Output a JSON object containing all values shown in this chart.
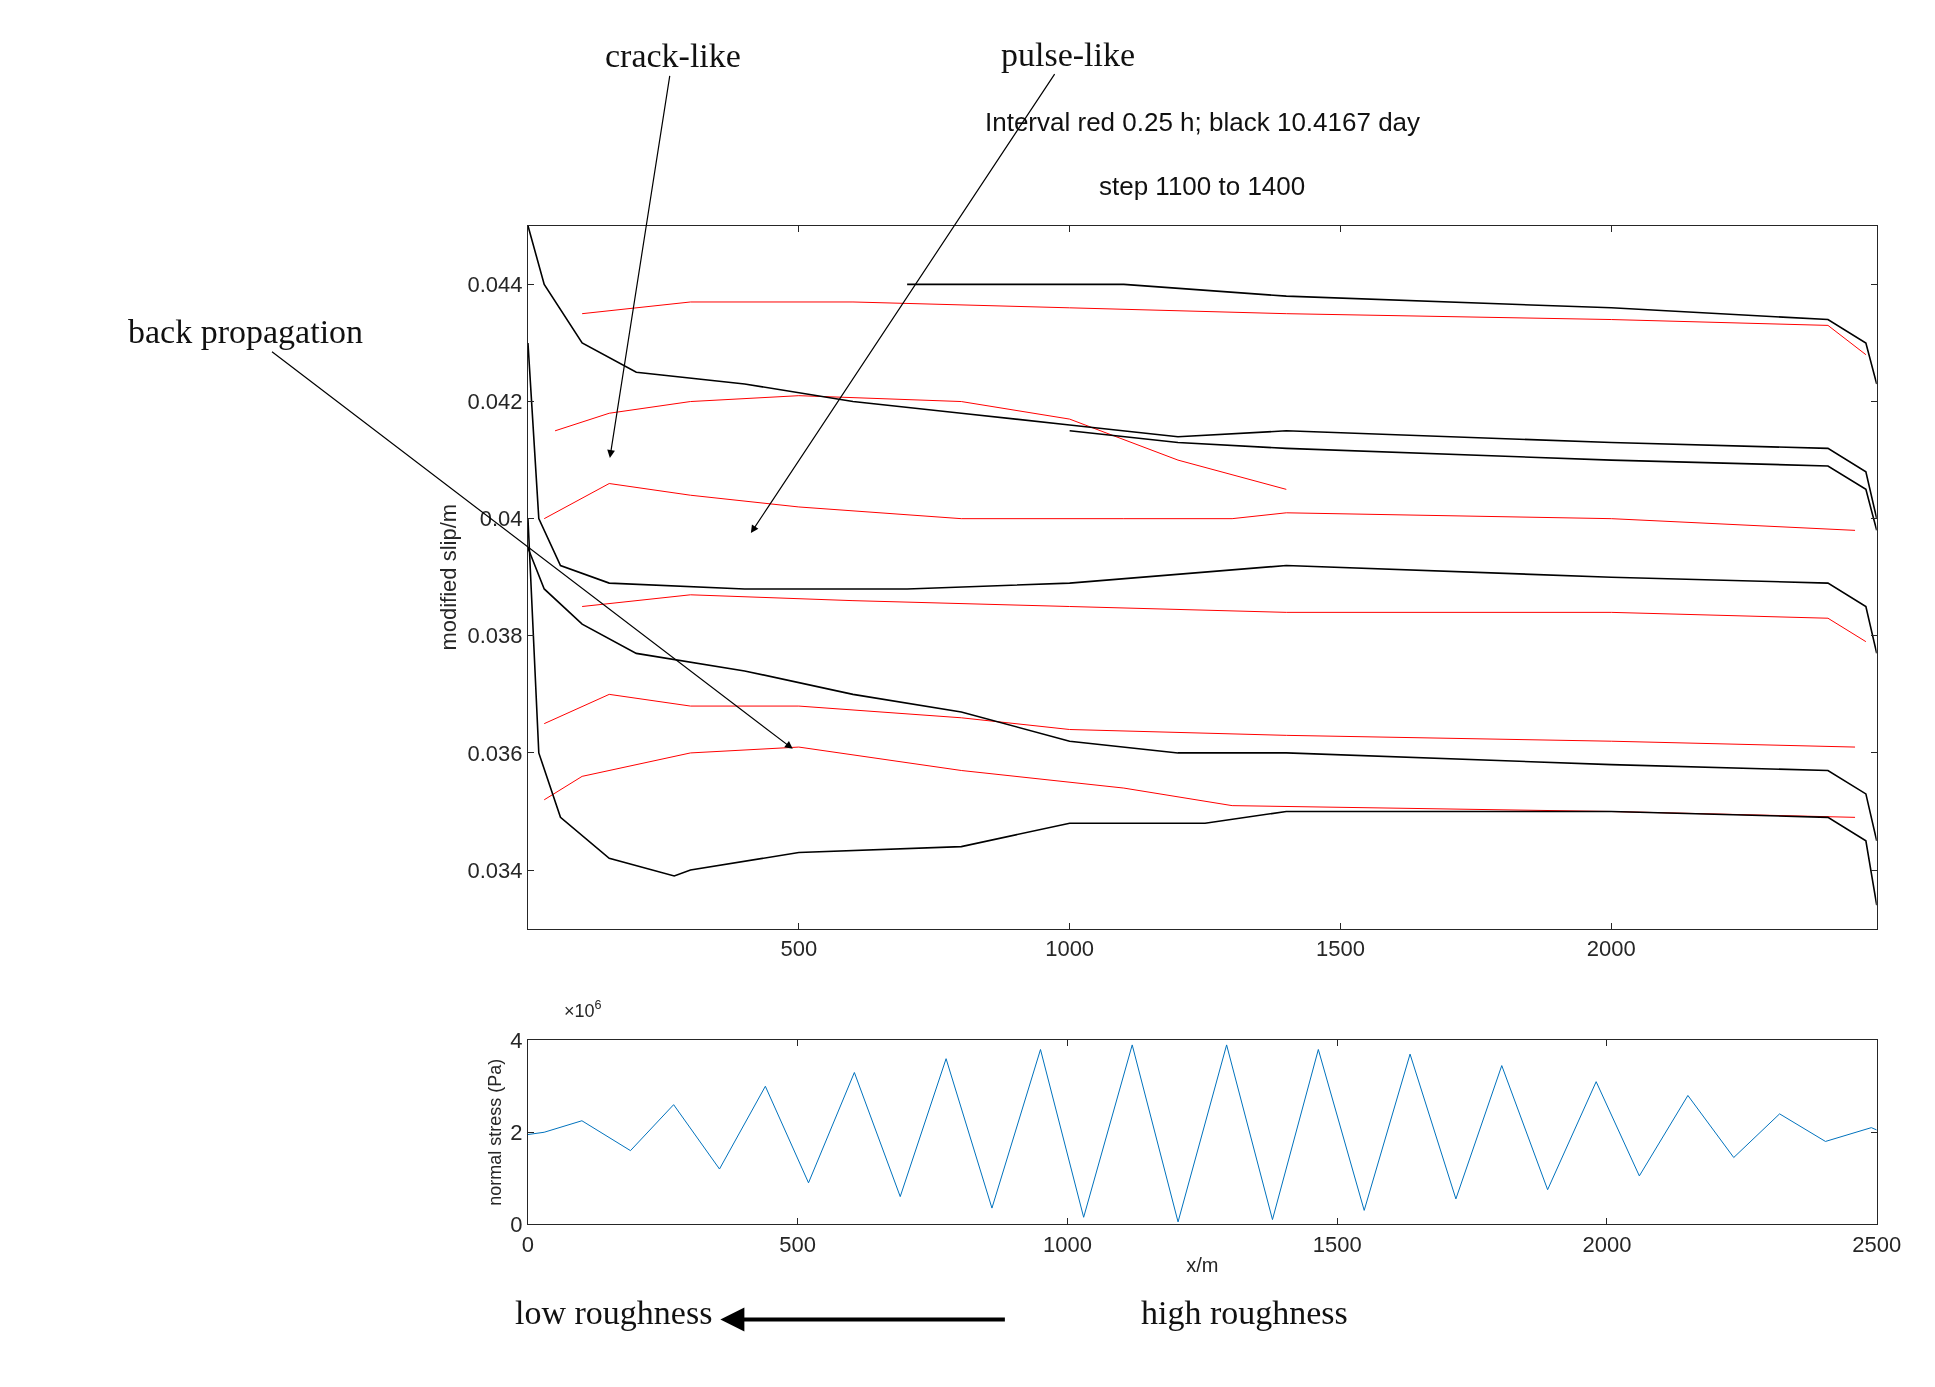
{
  "chart_data": [
    {
      "type": "line",
      "title": "Interval red 0.25 h; black 10.4167 day",
      "subtitle": "step 1100 to 1400",
      "ylabel": "modified slip/m",
      "xlim": [
        0,
        2490
      ],
      "ylim": [
        0.033,
        0.045
      ],
      "xticks": [
        500,
        1000,
        1500,
        2000
      ],
      "yticks": [
        0.034,
        0.036,
        0.038,
        0.04,
        0.042,
        0.044
      ],
      "marker": "none",
      "line_style": "solid",
      "series": [
        {
          "color": "#ff0000",
          "x": [
            100,
            300,
            600,
            1000,
            1400,
            2000,
            2400,
            2470
          ],
          "values": [
            0.0435,
            0.0437,
            0.0437,
            0.0436,
            0.0435,
            0.0434,
            0.0433,
            0.0428
          ]
        },
        {
          "color": "#ff0000",
          "x": [
            50,
            150,
            300,
            500,
            800,
            1000,
            1200,
            1400
          ],
          "values": [
            0.0415,
            0.0418,
            0.042,
            0.0421,
            0.042,
            0.0417,
            0.041,
            0.0405
          ]
        },
        {
          "color": "#ff0000",
          "x": [
            30,
            150,
            300,
            500,
            800,
            1100,
            1300,
            1400,
            2000,
            2450
          ],
          "values": [
            0.04,
            0.0406,
            0.0404,
            0.0402,
            0.04,
            0.04,
            0.04,
            0.0401,
            0.04,
            0.0398
          ]
        },
        {
          "color": "#ff0000",
          "x": [
            100,
            300,
            600,
            1000,
            1400,
            2000,
            2400,
            2470
          ],
          "values": [
            0.0385,
            0.0387,
            0.0386,
            0.0385,
            0.0384,
            0.0384,
            0.0383,
            0.0379
          ]
        },
        {
          "color": "#ff0000",
          "x": [
            30,
            150,
            300,
            500,
            800,
            1000,
            1400,
            2000,
            2450
          ],
          "values": [
            0.0365,
            0.037,
            0.0368,
            0.0368,
            0.0366,
            0.0364,
            0.0363,
            0.0362,
            0.0361
          ]
        },
        {
          "color": "#ff0000",
          "x": [
            30,
            100,
            300,
            500,
            800,
            1100,
            1300,
            2000,
            2450
          ],
          "values": [
            0.0352,
            0.0356,
            0.036,
            0.0361,
            0.0357,
            0.0354,
            0.0351,
            0.035,
            0.0349
          ]
        },
        {
          "color": "#000000",
          "x": [
            700,
            900,
            1100,
            1400,
            2000,
            2400,
            2470,
            2490
          ],
          "values": [
            0.044,
            0.044,
            0.044,
            0.0438,
            0.0436,
            0.0434,
            0.043,
            0.0423
          ]
        },
        {
          "color": "#000000",
          "x": [
            0,
            30,
            100,
            200,
            400,
            600,
            800,
            1000,
            1200,
            1400,
            2000,
            2400,
            2470,
            2490
          ],
          "values": [
            0.045,
            0.044,
            0.043,
            0.0425,
            0.0423,
            0.042,
            0.0418,
            0.0416,
            0.0414,
            0.0415,
            0.0413,
            0.0412,
            0.0408,
            0.04
          ]
        },
        {
          "color": "#000000",
          "x": [
            1000,
            1200,
            1400,
            2000,
            2400,
            2470,
            2490
          ],
          "values": [
            0.0415,
            0.0413,
            0.0412,
            0.041,
            0.0409,
            0.0405,
            0.0398
          ]
        },
        {
          "color": "#000000",
          "x": [
            0,
            20,
            60,
            150,
            400,
            700,
            1000,
            1400,
            2000,
            2400,
            2470,
            2490
          ],
          "values": [
            0.043,
            0.04,
            0.0392,
            0.0389,
            0.0388,
            0.0388,
            0.0389,
            0.0392,
            0.039,
            0.0389,
            0.0385,
            0.0377
          ]
        },
        {
          "color": "#000000",
          "x": [
            0,
            30,
            100,
            200,
            400,
            600,
            800,
            1000,
            1200,
            1400,
            2000,
            2400,
            2470,
            2490
          ],
          "values": [
            0.0395,
            0.0388,
            0.0382,
            0.0377,
            0.0374,
            0.037,
            0.0367,
            0.0362,
            0.036,
            0.036,
            0.0358,
            0.0357,
            0.0353,
            0.0345
          ]
        },
        {
          "color": "#000000",
          "x": [
            0,
            20,
            60,
            150,
            270,
            300,
            500,
            800,
            1000,
            1250,
            1400,
            2000,
            2400,
            2470,
            2490
          ],
          "values": [
            0.04,
            0.036,
            0.0349,
            0.0342,
            0.0339,
            0.034,
            0.0343,
            0.0344,
            0.0348,
            0.0348,
            0.035,
            0.035,
            0.0349,
            0.0345,
            0.0334
          ]
        }
      ],
      "annotations": [
        "crack-like",
        "pulse-like",
        "back propagation"
      ]
    },
    {
      "type": "line",
      "xlabel": "x/m",
      "ylabel": "normal stress (Pa)",
      "xlim": [
        0,
        2500
      ],
      "ylim": [
        0,
        4
      ],
      "xticks": [
        0,
        500,
        1000,
        1500,
        2000,
        2500
      ],
      "yticks": [
        0,
        2,
        4
      ],
      "marker": "none",
      "line_style": "solid",
      "series": [
        {
          "color": "#0072bd",
          "x": [
            0,
            30,
            100,
            190,
            270,
            355,
            440,
            520,
            605,
            690,
            775,
            860,
            950,
            1030,
            1120,
            1205,
            1295,
            1380,
            1465,
            1550,
            1635,
            1720,
            1805,
            1890,
            1980,
            2060,
            2150,
            2235,
            2320,
            2405,
            2490,
            2500
          ],
          "values": [
            1.95,
            2.0,
            2.25,
            1.6,
            2.6,
            1.2,
            3.0,
            0.9,
            3.3,
            0.6,
            3.6,
            0.35,
            3.8,
            0.15,
            3.9,
            0.05,
            3.9,
            0.1,
            3.8,
            0.3,
            3.7,
            0.55,
            3.45,
            0.75,
            3.1,
            1.05,
            2.8,
            1.45,
            2.4,
            1.8,
            2.1,
            2.05
          ]
        }
      ],
      "annotations": [
        "×10$^{6}$",
        "low roughness",
        "high roughness"
      ]
    }
  ]
}
